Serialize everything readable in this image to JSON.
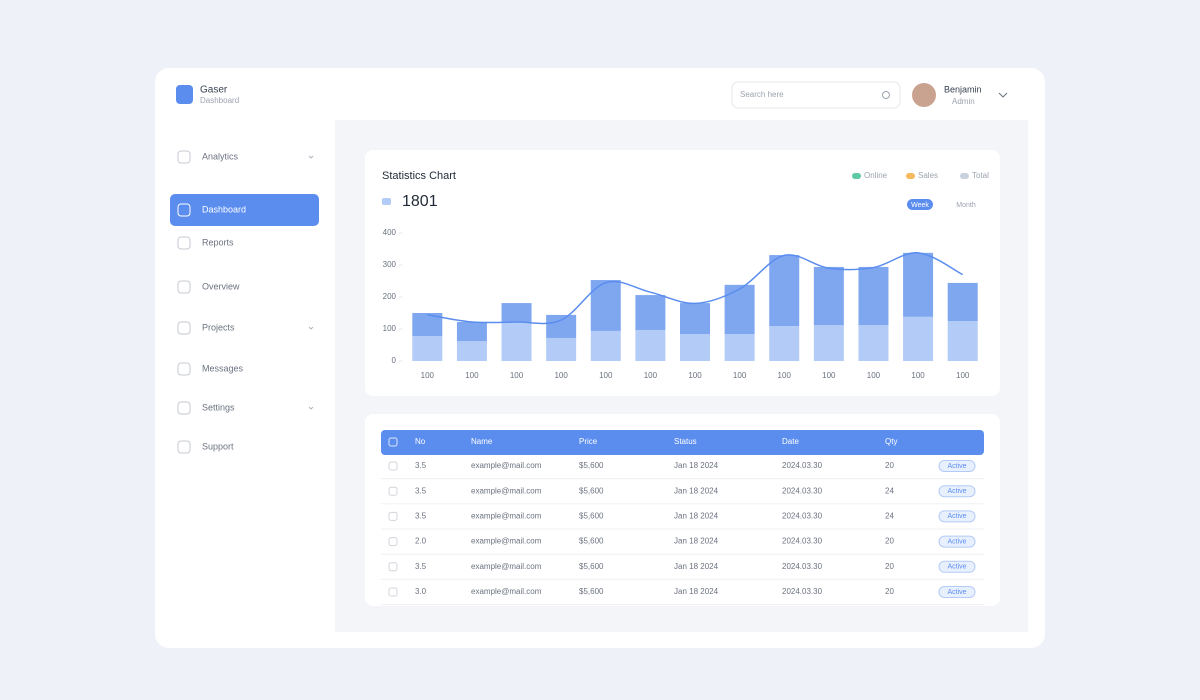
{
  "header": {
    "brand": "Gaser",
    "tagline": "Dashboard",
    "search": "Search here",
    "user": "Benjamin",
    "role": "Admin"
  },
  "sidebar": [
    "Analytics",
    "Dashboard",
    "Reports",
    "Overview",
    "Projects",
    "Messages",
    "Settings",
    "Support"
  ],
  "chart_data": {
    "type": "bar",
    "stacked": true,
    "title": "Statistics Chart",
    "summary_value": 1801,
    "legend": [
      {
        "label": "Online",
        "color": "#5cc9a7"
      },
      {
        "label": "Sales",
        "color": "#f5b95f"
      },
      {
        "label": "Total",
        "color": "#c9d1dd"
      }
    ],
    "toggle": [
      "Week",
      "Month"
    ],
    "categories": [
      "100",
      "100",
      "100",
      "100",
      "100",
      "100",
      "100",
      "100",
      "100",
      "100",
      "100",
      "100",
      "100"
    ],
    "series": [
      {
        "color": "#b3cbf7",
        "values": [
          78,
          62,
          122,
          72,
          94,
          97,
          84,
          84,
          109,
          112,
          112,
          138,
          125
        ]
      },
      {
        "color": "#7ea7f0",
        "values": [
          72,
          60,
          59,
          72,
          159,
          109,
          97,
          154,
          222,
          182,
          182,
          200,
          119
        ]
      },
      {
        "type": "line",
        "color": "#5b8def",
        "values": [
          145,
          122,
          122,
          128,
          245,
          215,
          180,
          225,
          330,
          290,
          292,
          338,
          270
        ]
      }
    ],
    "ylim": [
      0,
      400
    ],
    "yticks": [
      0,
      100,
      200,
      300,
      400
    ],
    "grid": false
  },
  "table": {
    "columns": [
      "No",
      "Name",
      "Price",
      "Status",
      "Date",
      "Qty"
    ],
    "rows": [
      [
        "3.5",
        "example@mail.com",
        "$5,600",
        "Jan 18 2024",
        "2024.03.30",
        "20",
        "Active"
      ],
      [
        "3.5",
        "example@mail.com",
        "$5,600",
        "Jan 18 2024",
        "2024.03.30",
        "24",
        "Active"
      ],
      [
        "3.5",
        "example@mail.com",
        "$5,600",
        "Jan 18 2024",
        "2024.03.30",
        "24",
        "Active"
      ],
      [
        "2.0",
        "example@mail.com",
        "$5,600",
        "Jan 18 2024",
        "2024.03.30",
        "20",
        "Active"
      ],
      [
        "3.5",
        "example@mail.com",
        "$5,600",
        "Jan 18 2024",
        "2024.03.30",
        "20",
        "Active"
      ],
      [
        "3.0",
        "example@mail.com",
        "$5,600",
        "Jan 18 2024",
        "2024.03.30",
        "20",
        "Active"
      ]
    ]
  }
}
